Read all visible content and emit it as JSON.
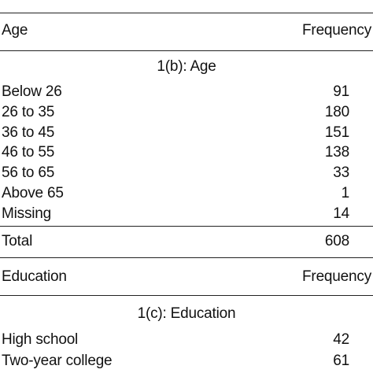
{
  "tables": [
    {
      "header": {
        "col1": "Age",
        "col2": "Frequency"
      },
      "section_title": "1(b): Age",
      "rows": [
        {
          "label": "Below 26",
          "value": "91"
        },
        {
          "label": "26 to 35",
          "value": "180"
        },
        {
          "label": "36 to 45",
          "value": "151"
        },
        {
          "label": "46 to 55",
          "value": "138"
        },
        {
          "label": "56 to 65",
          "value": "33"
        },
        {
          "label": "Above 65",
          "value": "1"
        },
        {
          "label": "Missing",
          "value": "14"
        }
      ],
      "total": {
        "label": "Total",
        "value": "608"
      }
    },
    {
      "header": {
        "col1": "Education",
        "col2": "Frequency"
      },
      "section_title": "1(c): Education",
      "rows": [
        {
          "label": "High school",
          "value": "42"
        },
        {
          "label": "Two-year college",
          "value": "61"
        }
      ]
    }
  ]
}
